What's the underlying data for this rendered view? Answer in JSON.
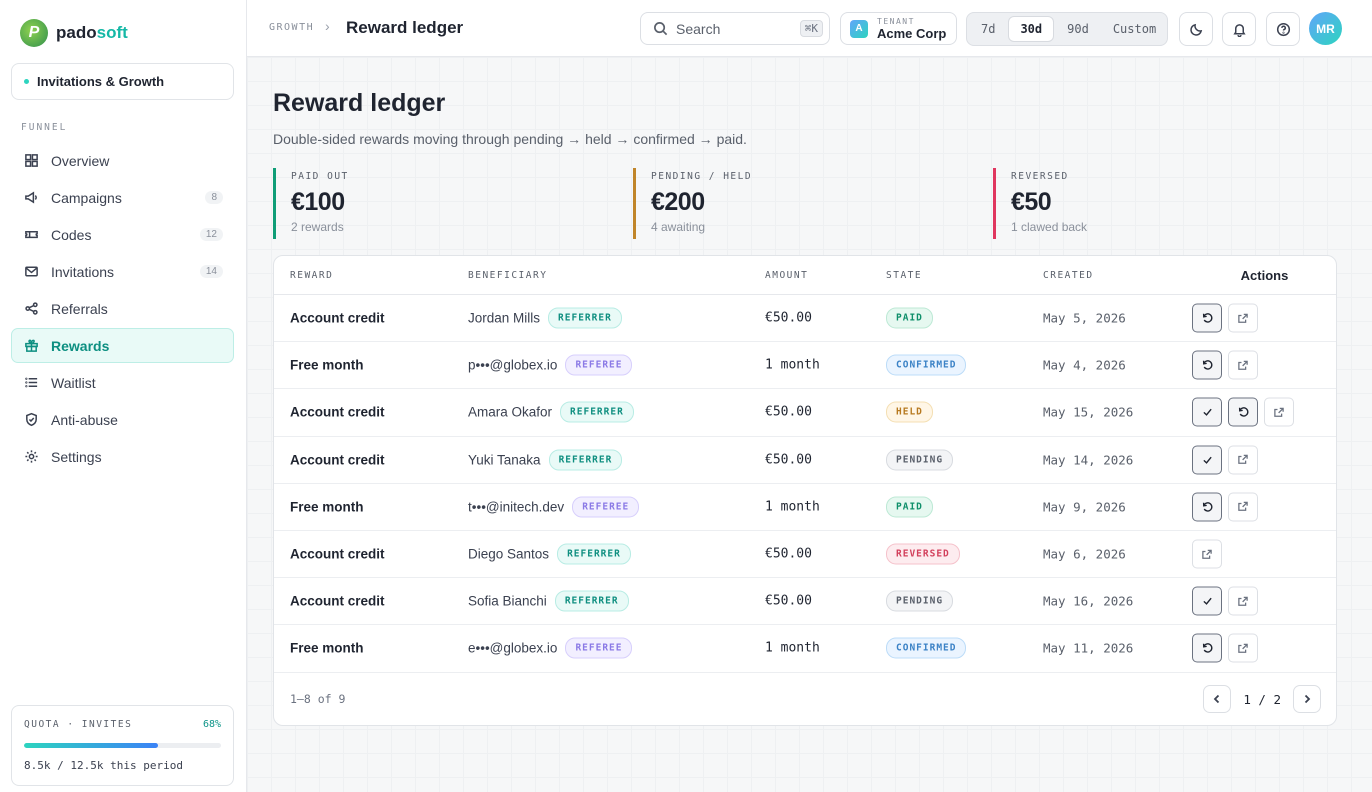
{
  "brand": {
    "name_main": "pado",
    "name_accent": "soft",
    "logo_letter": "P"
  },
  "workspace": {
    "label": "Invitations & Growth"
  },
  "sidebar": {
    "section_label": "FUNNEL",
    "items": [
      {
        "label": "Overview",
        "icon": "grid-icon",
        "count": ""
      },
      {
        "label": "Campaigns",
        "icon": "megaphone-icon",
        "count": "8"
      },
      {
        "label": "Codes",
        "icon": "ticket-icon",
        "count": "12"
      },
      {
        "label": "Invitations",
        "icon": "mail-icon",
        "count": "14"
      },
      {
        "label": "Referrals",
        "icon": "share-icon",
        "count": ""
      },
      {
        "label": "Rewards",
        "icon": "gift-icon",
        "count": "",
        "active": true
      },
      {
        "label": "Waitlist",
        "icon": "list-icon",
        "count": ""
      },
      {
        "label": "Anti-abuse",
        "icon": "shield-icon",
        "count": ""
      },
      {
        "label": "Settings",
        "icon": "gear-icon",
        "count": ""
      }
    ]
  },
  "quota": {
    "label": "QUOTA · INVITES",
    "percent_text": "68%",
    "fraction": 0.68,
    "text": "8.5k / 12.5k this period"
  },
  "topbar": {
    "crumb_parent": "GROWTH",
    "crumb_sep": "›",
    "crumb_current": "Reward ledger",
    "search_placeholder": "Search",
    "search_shortcut": "⌘K",
    "tenant_badge": "A",
    "tenant_label": "TENANT",
    "tenant_name": "Acme Corp",
    "ranges": [
      "7d",
      "30d",
      "90d",
      "Custom"
    ],
    "active_range": "30d",
    "avatar_initials": "MR"
  },
  "page": {
    "title": "Reward ledger",
    "subtitle": "Double-sided rewards moving through pending → held → confirmed → paid."
  },
  "stats": [
    {
      "label": "PAID OUT",
      "value": "€100",
      "note": "2 rewards",
      "color": "#0f9d77"
    },
    {
      "label": "PENDING / HELD",
      "value": "€200",
      "note": "4 awaiting",
      "color": "#c0852a"
    },
    {
      "label": "REVERSED",
      "value": "€50",
      "note": "1 clawed back",
      "color": "#e0365f"
    }
  ],
  "table": {
    "columns": [
      "REWARD",
      "BENEFICIARY",
      "AMOUNT",
      "STATE",
      "CREATED",
      "Actions"
    ],
    "rows": [
      {
        "reward": "Account credit",
        "beneficiary": "Jordan Mills",
        "role": "REFERRER",
        "amount": "€50.00",
        "state": "PAID",
        "created": "May 5, 2026",
        "actions": [
          "undo",
          "open"
        ]
      },
      {
        "reward": "Free month",
        "beneficiary": "p•••@globex.io",
        "role": "REFEREE",
        "amount": "1 month",
        "state": "CONFIRMED",
        "created": "May 4, 2026",
        "actions": [
          "undo",
          "open"
        ]
      },
      {
        "reward": "Account credit",
        "beneficiary": "Amara Okafor",
        "role": "REFERRER",
        "amount": "€50.00",
        "state": "HELD",
        "created": "May 15, 2026",
        "actions": [
          "approve",
          "undo",
          "open"
        ]
      },
      {
        "reward": "Account credit",
        "beneficiary": "Yuki Tanaka",
        "role": "REFERRER",
        "amount": "€50.00",
        "state": "PENDING",
        "created": "May 14, 2026",
        "actions": [
          "approve",
          "open"
        ]
      },
      {
        "reward": "Free month",
        "beneficiary": "t•••@initech.dev",
        "role": "REFEREE",
        "amount": "1 month",
        "state": "PAID",
        "created": "May 9, 2026",
        "actions": [
          "undo",
          "open"
        ]
      },
      {
        "reward": "Account credit",
        "beneficiary": "Diego Santos",
        "role": "REFERRER",
        "amount": "€50.00",
        "state": "REVERSED",
        "created": "May 6, 2026",
        "actions": [
          "open"
        ]
      },
      {
        "reward": "Account credit",
        "beneficiary": "Sofia Bianchi",
        "role": "REFERRER",
        "amount": "€50.00",
        "state": "PENDING",
        "created": "May 16, 2026",
        "actions": [
          "approve",
          "open"
        ]
      },
      {
        "reward": "Free month",
        "beneficiary": "e•••@globex.io",
        "role": "REFEREE",
        "amount": "1 month",
        "state": "CONFIRMED",
        "created": "May 11, 2026",
        "actions": [
          "undo",
          "open"
        ]
      }
    ],
    "footer_range": "1–8 of 9",
    "pager_text": "1 / 2"
  }
}
